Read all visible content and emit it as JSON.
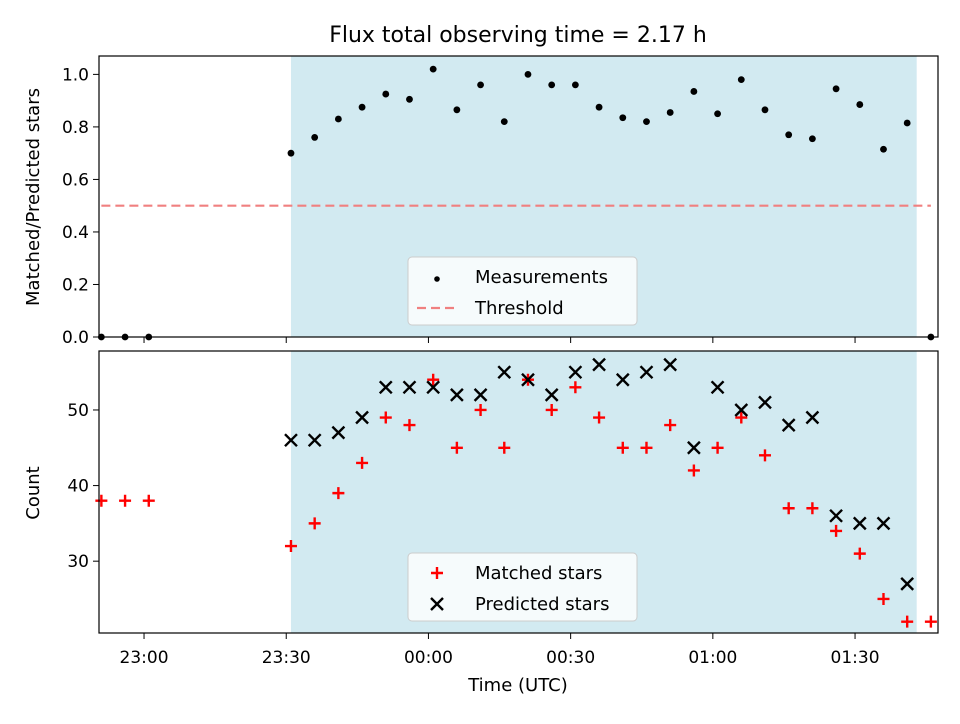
{
  "chart_data": {
    "type": "scatter",
    "title": "Flux total observing time = 2.17 h",
    "xlabel": "Time (UTC)",
    "x_ticks": [
      "23:00",
      "23:30",
      "00:00",
      "00:30",
      "01:00",
      "01:30"
    ],
    "observing_window": {
      "start": "23:31",
      "end": "01:43",
      "color": "#add8e6"
    },
    "top_panel": {
      "ylabel": "Matched/Predicted stars",
      "ylim": [
        0.0,
        1.07
      ],
      "yticks": [
        "0.0",
        "0.2",
        "0.4",
        "0.6",
        "0.8",
        "1.0"
      ],
      "legend_position": "lower center",
      "series": [
        {
          "name": "Measurements",
          "marker": "dot",
          "color": "#000000",
          "points": [
            [
              "22:51",
              0.0
            ],
            [
              "22:56",
              0.0
            ],
            [
              "23:01",
              0.0
            ],
            [
              "23:31",
              0.7
            ],
            [
              "23:36",
              0.76
            ],
            [
              "23:41",
              0.83
            ],
            [
              "23:46",
              0.875
            ],
            [
              "23:51",
              0.925
            ],
            [
              "23:56",
              0.905
            ],
            [
              "00:01",
              1.02
            ],
            [
              "00:06",
              0.865
            ],
            [
              "00:11",
              0.96
            ],
            [
              "00:16",
              0.82
            ],
            [
              "00:21",
              1.0
            ],
            [
              "00:26",
              0.96
            ],
            [
              "00:31",
              0.96
            ],
            [
              "00:36",
              0.875
            ],
            [
              "00:41",
              0.835
            ],
            [
              "00:46",
              0.82
            ],
            [
              "00:51",
              0.855
            ],
            [
              "00:56",
              0.935
            ],
            [
              "01:01",
              0.85
            ],
            [
              "01:06",
              0.98
            ],
            [
              "01:11",
              0.865
            ],
            [
              "01:16",
              0.77
            ],
            [
              "01:21",
              0.755
            ],
            [
              "01:26",
              0.945
            ],
            [
              "01:31",
              0.885
            ],
            [
              "01:36",
              0.715
            ],
            [
              "01:41",
              0.815
            ],
            [
              "01:46",
              0.0
            ]
          ]
        },
        {
          "name": "Threshold",
          "marker": "dashed-line",
          "color": "#f08080",
          "points": [
            [
              "22:51",
              0.5
            ],
            [
              "01:46",
              0.5
            ]
          ]
        }
      ]
    },
    "bottom_panel": {
      "ylabel": "Count",
      "ylim": [
        20.5,
        57.8
      ],
      "yticks": [
        "30",
        "40",
        "50"
      ],
      "legend_position": "lower center",
      "series": [
        {
          "name": "Matched stars",
          "marker": "plus",
          "color": "#ff0000",
          "points": [
            [
              "22:51",
              38
            ],
            [
              "22:56",
              38
            ],
            [
              "23:01",
              38
            ],
            [
              "23:31",
              32
            ],
            [
              "23:36",
              35
            ],
            [
              "23:41",
              39
            ],
            [
              "23:46",
              43
            ],
            [
              "23:51",
              49
            ],
            [
              "23:56",
              48
            ],
            [
              "00:01",
              54
            ],
            [
              "00:06",
              45
            ],
            [
              "00:11",
              50
            ],
            [
              "00:16",
              45
            ],
            [
              "00:21",
              54
            ],
            [
              "00:26",
              50
            ],
            [
              "00:31",
              53
            ],
            [
              "00:36",
              49
            ],
            [
              "00:41",
              45
            ],
            [
              "00:46",
              45
            ],
            [
              "00:51",
              48
            ],
            [
              "00:56",
              42
            ],
            [
              "01:01",
              45
            ],
            [
              "01:06",
              49
            ],
            [
              "01:11",
              44
            ],
            [
              "01:16",
              37
            ],
            [
              "01:21",
              37
            ],
            [
              "01:26",
              34
            ],
            [
              "01:31",
              31
            ],
            [
              "01:36",
              25
            ],
            [
              "01:41",
              22
            ],
            [
              "01:46",
              22
            ]
          ]
        },
        {
          "name": "Predicted stars",
          "marker": "x",
          "color": "#000000",
          "points": [
            [
              "23:31",
              46
            ],
            [
              "23:36",
              46
            ],
            [
              "23:41",
              47
            ],
            [
              "23:46",
              49
            ],
            [
              "23:51",
              53
            ],
            [
              "23:56",
              53
            ],
            [
              "00:01",
              53
            ],
            [
              "00:06",
              52
            ],
            [
              "00:11",
              52
            ],
            [
              "00:16",
              55
            ],
            [
              "00:21",
              54
            ],
            [
              "00:26",
              52
            ],
            [
              "00:31",
              55
            ],
            [
              "00:36",
              56
            ],
            [
              "00:41",
              54
            ],
            [
              "00:46",
              55
            ],
            [
              "00:51",
              56
            ],
            [
              "00:56",
              45
            ],
            [
              "01:01",
              53
            ],
            [
              "01:06",
              50
            ],
            [
              "01:11",
              51
            ],
            [
              "01:16",
              48
            ],
            [
              "01:21",
              49
            ],
            [
              "01:26",
              36
            ],
            [
              "01:31",
              35
            ],
            [
              "01:36",
              35
            ],
            [
              "01:41",
              27
            ]
          ]
        }
      ]
    }
  }
}
